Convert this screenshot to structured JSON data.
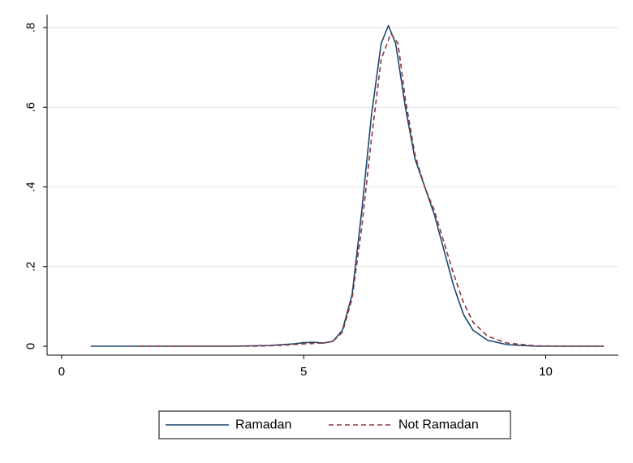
{
  "chart_data": {
    "type": "line",
    "title": "",
    "xlabel": "",
    "ylabel": "",
    "xlim": [
      -0.3,
      11.5
    ],
    "ylim": [
      0,
      0.8
    ],
    "x_ticks": [
      0,
      5,
      10
    ],
    "x_tick_labels": [
      "0",
      "5",
      "10"
    ],
    "y_ticks": [
      0,
      0.2,
      0.4,
      0.6,
      0.8
    ],
    "y_tick_labels": [
      "0",
      ".2",
      ".4",
      ".6",
      ".8"
    ],
    "grid": "horizontal",
    "legend_position": "bottom",
    "series": [
      {
        "name": "Ramadan",
        "color": "#1a476f",
        "style": "solid",
        "points": [
          [
            0.6,
            0.0
          ],
          [
            2.0,
            0.0
          ],
          [
            3.5,
            0.0
          ],
          [
            4.3,
            0.002
          ],
          [
            4.8,
            0.006
          ],
          [
            5.0,
            0.009
          ],
          [
            5.2,
            0.01
          ],
          [
            5.4,
            0.008
          ],
          [
            5.6,
            0.012
          ],
          [
            5.8,
            0.04
          ],
          [
            6.0,
            0.13
          ],
          [
            6.2,
            0.34
          ],
          [
            6.4,
            0.58
          ],
          [
            6.6,
            0.76
          ],
          [
            6.75,
            0.805
          ],
          [
            6.9,
            0.76
          ],
          [
            7.1,
            0.6
          ],
          [
            7.3,
            0.47
          ],
          [
            7.5,
            0.4
          ],
          [
            7.7,
            0.33
          ],
          [
            7.9,
            0.24
          ],
          [
            8.1,
            0.15
          ],
          [
            8.3,
            0.08
          ],
          [
            8.5,
            0.04
          ],
          [
            8.8,
            0.015
          ],
          [
            9.2,
            0.004
          ],
          [
            9.8,
            0.0
          ],
          [
            10.5,
            0.0
          ],
          [
            11.2,
            0.0
          ]
        ]
      },
      {
        "name": "Not Ramadan",
        "color": "#90353b",
        "style": "dashed",
        "points": [
          [
            1.6,
            0.0
          ],
          [
            3.0,
            0.0
          ],
          [
            4.0,
            0.0
          ],
          [
            4.5,
            0.002
          ],
          [
            5.0,
            0.006
          ],
          [
            5.4,
            0.008
          ],
          [
            5.6,
            0.012
          ],
          [
            5.8,
            0.035
          ],
          [
            6.0,
            0.12
          ],
          [
            6.2,
            0.3
          ],
          [
            6.4,
            0.52
          ],
          [
            6.6,
            0.72
          ],
          [
            6.8,
            0.785
          ],
          [
            6.95,
            0.76
          ],
          [
            7.1,
            0.62
          ],
          [
            7.3,
            0.48
          ],
          [
            7.5,
            0.4
          ],
          [
            7.7,
            0.34
          ],
          [
            7.9,
            0.26
          ],
          [
            8.1,
            0.18
          ],
          [
            8.3,
            0.11
          ],
          [
            8.5,
            0.06
          ],
          [
            8.8,
            0.025
          ],
          [
            9.2,
            0.008
          ],
          [
            9.8,
            0.001
          ],
          [
            10.5,
            0.0
          ],
          [
            11.2,
            0.0
          ]
        ]
      }
    ]
  }
}
